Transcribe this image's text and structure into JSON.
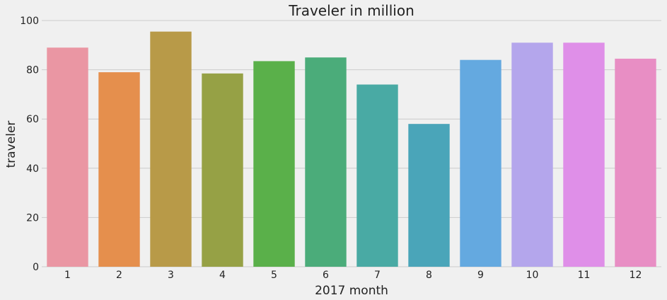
{
  "chart_data": {
    "type": "bar",
    "title": "Traveler in million",
    "xlabel": "2017 month",
    "ylabel": "traveler",
    "categories": [
      "1",
      "2",
      "3",
      "4",
      "5",
      "6",
      "7",
      "8",
      "9",
      "10",
      "11",
      "12"
    ],
    "values": [
      89,
      79,
      95.5,
      78.5,
      83.5,
      85,
      74,
      58,
      84,
      91,
      91,
      84.5
    ],
    "colors": [
      "#ea96a3",
      "#e58f4d",
      "#b89a48",
      "#96a145",
      "#5ab04a",
      "#4bac7a",
      "#49aaa4",
      "#4aa5b9",
      "#64a9e0",
      "#b4a6ec",
      "#df8fe8",
      "#e88ec4"
    ],
    "ylim": [
      0,
      100
    ],
    "yticks": [
      0,
      20,
      40,
      60,
      80,
      100
    ],
    "grid": true,
    "legend": "none"
  }
}
